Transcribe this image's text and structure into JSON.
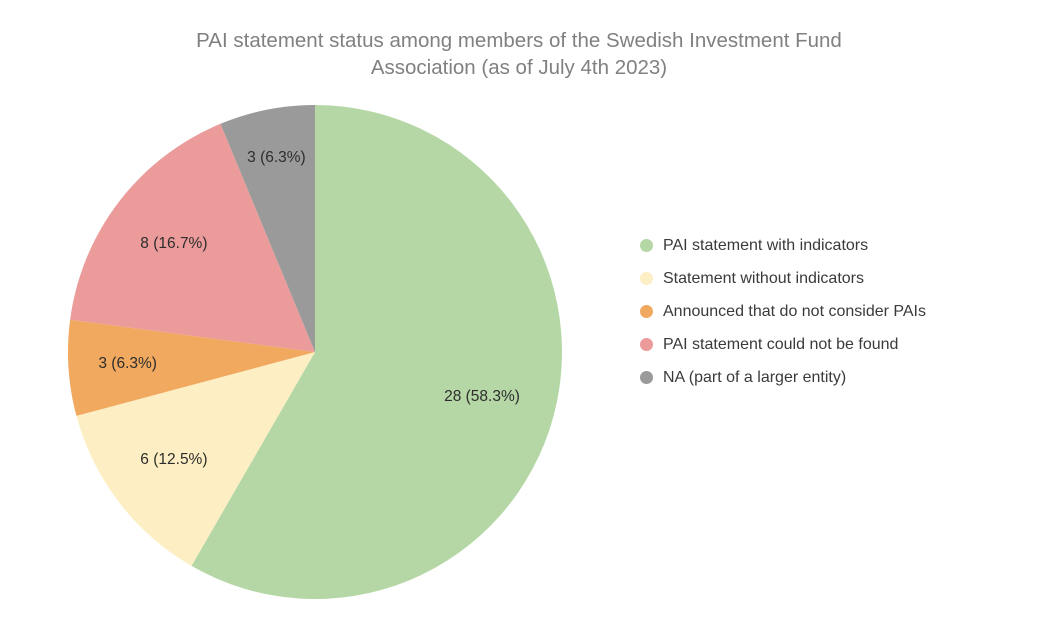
{
  "page": {
    "background": "#ffffff",
    "title_color": "#808080",
    "label_color": "#2d2d2d",
    "legend_text_color": "#3a3a3a"
  },
  "title": {
    "lines": [
      "PAI statement status among members of the Swedish Investment Fund",
      "Association (as of July 4th 2023)"
    ]
  },
  "chart_data": {
    "type": "pie",
    "title": "PAI statement status among members of the Swedish Investment Fund Association (as of July 4th 2023)",
    "total": 48,
    "direction": "clockwise",
    "start_angle_deg": 0,
    "sorted": false,
    "legend_position": "right",
    "labels_inside": true,
    "slices": [
      {
        "label": "PAI statement with indicators",
        "value": 28,
        "pct": 58.3,
        "display": "28 (58.3%)",
        "color": "#b5d7a5",
        "label_r": 0.7
      },
      {
        "label": "Statement without indicators",
        "value": 6,
        "pct": 12.5,
        "display": "6 (12.5%)",
        "color": "#fdefc3",
        "label_r": 0.72
      },
      {
        "label": "Announced that do not consider PAIs",
        "value": 3,
        "pct": 6.3,
        "display": "3 (6.3%)",
        "color": "#f1a95f",
        "label_r": 0.76
      },
      {
        "label": "PAI statement could not be found",
        "value": 8,
        "pct": 16.7,
        "display": "8 (16.7%)",
        "color": "#ec9b9b",
        "label_r": 0.72
      },
      {
        "label": "NA (part of a larger entity)",
        "value": 3,
        "pct": 6.3,
        "display": "3 (6.3%)",
        "color": "#9a9a9a",
        "label_r": 0.8
      }
    ]
  }
}
